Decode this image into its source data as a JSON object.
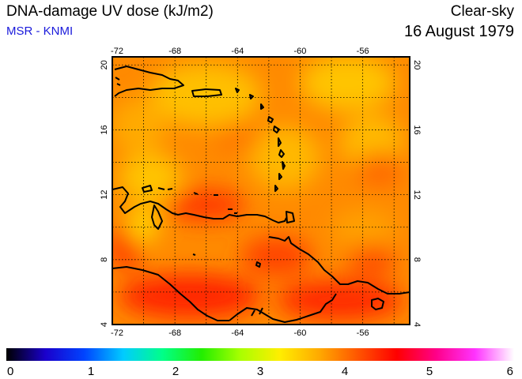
{
  "header": {
    "title": "DNA-damage UV dose (kJ/m2)",
    "subtitle": "MSR - KNMI",
    "condition": "Clear-sky",
    "date": "16 August 1979"
  },
  "map": {
    "lon_range": [
      -72,
      -53
    ],
    "lat_range": [
      4,
      20.5
    ],
    "lon_ticks": [
      -72,
      -68,
      -64,
      -60,
      -56
    ],
    "lat_ticks": [
      4,
      8,
      12,
      16,
      20
    ],
    "lon_tick_labels": [
      "-72",
      "-68",
      "-64",
      "-60",
      "-56"
    ],
    "lat_tick_labels": [
      "4",
      "8",
      "12",
      "16",
      "20"
    ],
    "grid": "dotted, every 2 degrees",
    "colors": {
      "land_outline": "#000000",
      "field_low": "#ff6600",
      "field_mid": "#ff8a00",
      "field_high": "#ffc400",
      "field_peak": "#ff1a00"
    }
  },
  "colorbar": {
    "min": 0,
    "max": 6,
    "tick_values": [
      0,
      1,
      2,
      3,
      4,
      5,
      6
    ],
    "tick_labels": [
      "0",
      "1",
      "2",
      "3",
      "4",
      "5",
      "6"
    ],
    "stops": [
      "#000000",
      "#1a00cc",
      "#0044ff",
      "#00ccff",
      "#00ff88",
      "#22ee00",
      "#aaff00",
      "#ffee00",
      "#ffaa00",
      "#ff5500",
      "#ff0000",
      "#ff0088",
      "#ff33ff",
      "#ffffff"
    ]
  }
}
